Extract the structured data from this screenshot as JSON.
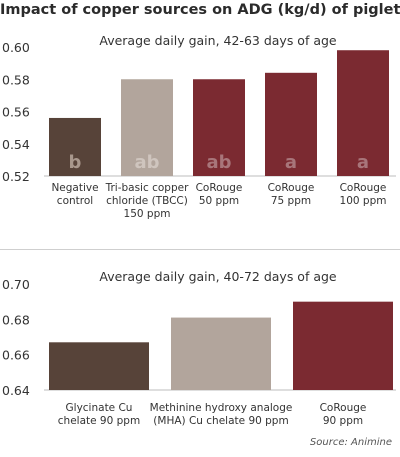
{
  "title": "Impact of copper sources on ADG (kg/d) of piglets",
  "source": "Source: Animine",
  "chart_data": [
    {
      "type": "bar",
      "title": "Average daily gain, 42-63 days of age",
      "ylim": [
        0.52,
        0.6
      ],
      "yticks": [
        "0.52",
        "0.54",
        "0.56",
        "0.58",
        "0.60"
      ],
      "grid": false,
      "categories": [
        [
          "Negative",
          "control"
        ],
        [
          "Tri-basic copper",
          "chloride (TBCC)",
          "150 ppm"
        ],
        [
          "CoRouge",
          "50 ppm"
        ],
        [
          "CoRouge",
          "75 ppm"
        ],
        [
          "CoRouge",
          "100 ppm"
        ]
      ],
      "values": [
        0.556,
        0.58,
        0.58,
        0.584,
        0.598
      ],
      "bar_labels": [
        "b",
        "ab",
        "ab",
        "a",
        "a"
      ],
      "colors": [
        "#574339",
        "#b2a59c",
        "#7b2a31",
        "#7b2a31",
        "#7b2a31"
      ],
      "label_colors": [
        "#a8978c",
        "#cfc5be",
        "#a8757a",
        "#a8757a",
        "#a8757a"
      ]
    },
    {
      "type": "bar",
      "title": "Average daily gain, 40-72 days of age",
      "ylim": [
        0.64,
        0.7
      ],
      "yticks": [
        "0.64",
        "0.66",
        "0.68",
        "0.70"
      ],
      "grid": false,
      "categories": [
        [
          "Glycinate Cu",
          "chelate 90 ppm"
        ],
        [
          "Methinine hydroxy analoge",
          "(MHA) Cu chelate 90 ppm"
        ],
        [
          "CoRouge",
          "90 ppm"
        ]
      ],
      "values": [
        0.667,
        0.681,
        0.69
      ],
      "colors": [
        "#574339",
        "#b2a59c",
        "#7b2a31"
      ]
    }
  ]
}
